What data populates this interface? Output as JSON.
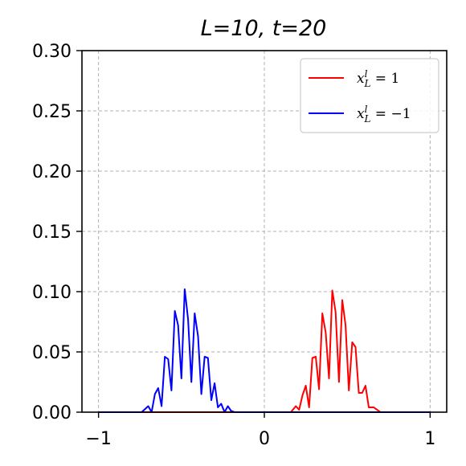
{
  "chart_data": {
    "type": "line",
    "title": "L=10, t=20",
    "xlabel": "",
    "ylabel": "",
    "xlim": [
      -1.1,
      1.1
    ],
    "ylim": [
      0.0,
      0.3
    ],
    "xticks": [
      -1,
      0,
      1
    ],
    "xtick_labels": [
      "−1",
      "0",
      "1"
    ],
    "yticks": [
      0.0,
      0.05,
      0.1,
      0.15,
      0.2,
      0.25,
      0.3
    ],
    "ytick_labels": [
      "0.00",
      "0.05",
      "0.10",
      "0.15",
      "0.20",
      "0.25",
      "0.30"
    ],
    "grid": true,
    "legend_position": "top-right",
    "series": [
      {
        "name": "x_L^l = 1",
        "color": "#ff0000",
        "x": [
          -1.0,
          0.0,
          0.13,
          0.16,
          0.19,
          0.21,
          0.23,
          0.25,
          0.27,
          0.29,
          0.31,
          0.33,
          0.35,
          0.37,
          0.39,
          0.41,
          0.43,
          0.45,
          0.47,
          0.49,
          0.51,
          0.53,
          0.55,
          0.57,
          0.59,
          0.61,
          0.63,
          0.66,
          0.7,
          0.74,
          0.8,
          1.0
        ],
        "y": [
          0.0,
          0.0,
          0.0,
          0.0,
          0.005,
          0.002,
          0.014,
          0.022,
          0.004,
          0.045,
          0.046,
          0.019,
          0.082,
          0.066,
          0.028,
          0.101,
          0.083,
          0.025,
          0.093,
          0.072,
          0.018,
          0.058,
          0.054,
          0.016,
          0.016,
          0.022,
          0.004,
          0.004,
          0.0,
          0.0,
          0.0,
          0.0
        ]
      },
      {
        "name": "x_L^l = −1",
        "color": "#0000ff",
        "x": [
          -1.0,
          -0.8,
          -0.74,
          -0.7,
          -0.68,
          -0.66,
          -0.64,
          -0.62,
          -0.6,
          -0.58,
          -0.56,
          -0.54,
          -0.52,
          -0.5,
          -0.48,
          -0.46,
          -0.44,
          -0.42,
          -0.4,
          -0.38,
          -0.36,
          -0.34,
          -0.32,
          -0.3,
          -0.28,
          -0.26,
          -0.24,
          -0.22,
          -0.2,
          -0.18,
          -0.16,
          -0.13,
          0.0,
          1.0
        ],
        "y": [
          0.0,
          0.0,
          0.0,
          0.005,
          0.0,
          0.015,
          0.02,
          0.005,
          0.046,
          0.044,
          0.018,
          0.084,
          0.072,
          0.028,
          0.102,
          0.077,
          0.025,
          0.082,
          0.063,
          0.015,
          0.046,
          0.045,
          0.01,
          0.024,
          0.004,
          0.007,
          0.0,
          0.005,
          0.001,
          0.0,
          0.0,
          0.0,
          0.0,
          0.0
        ]
      }
    ]
  },
  "legend": {
    "items": [
      {
        "label": "x_L^l = 1",
        "color": "#ff0000"
      },
      {
        "label": "x_L^l = −1",
        "color": "#0000ff"
      }
    ]
  }
}
